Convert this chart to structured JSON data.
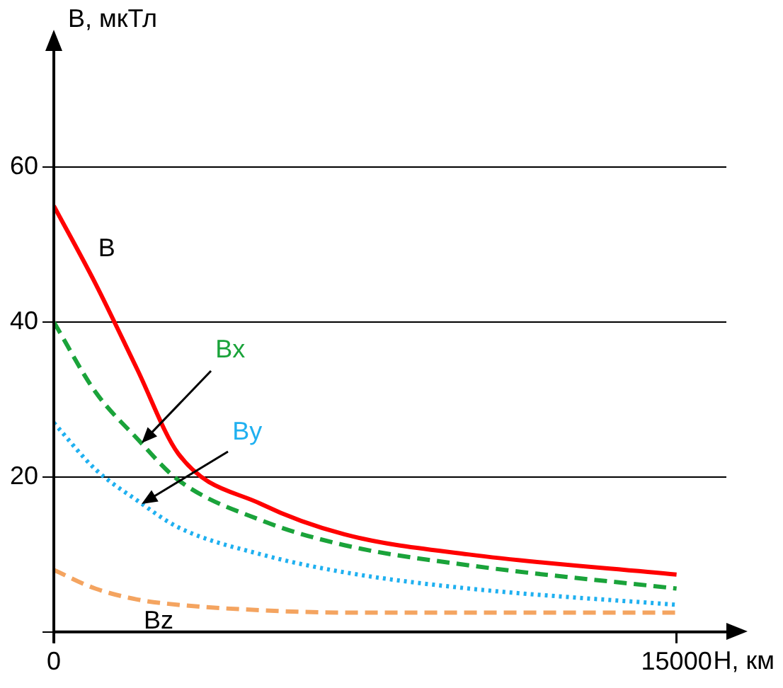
{
  "chart_data": {
    "type": "line",
    "ylabel": "B, мкТл",
    "xlabel": "H, км",
    "x": [
      0,
      1000,
      2000,
      3000,
      5000,
      7000,
      10000,
      15000
    ],
    "series": [
      {
        "name": "B",
        "color": "#ff0000",
        "line_style": "solid",
        "values": [
          55,
          45,
          34,
          23,
          16.5,
          12.6,
          10,
          7.4
        ]
      },
      {
        "name": "Bx",
        "color": "#1aa33a",
        "line_style": "dashed",
        "values": [
          40,
          31,
          25,
          19.6,
          14.4,
          11.2,
          8.6,
          5.6
        ]
      },
      {
        "name": "By",
        "color": "#1fb0f0",
        "line_style": "dotted",
        "values": [
          27,
          21,
          17,
          13.5,
          10,
          7.7,
          5.6,
          3.5
        ]
      },
      {
        "name": "Bz",
        "color": "#f4a460",
        "line_style": "dashed",
        "values": [
          8,
          5.6,
          4.2,
          3.5,
          2.8,
          2.5,
          2.5,
          2.5
        ]
      }
    ],
    "xlim": [
      0,
      16200
    ],
    "ylim": [
      0,
      75
    ],
    "xticks": [
      0,
      15000
    ],
    "yticks": [
      {
        "value": 0,
        "label": null
      },
      20,
      40,
      60
    ],
    "grid": "y",
    "legend": false,
    "marker": "none"
  }
}
